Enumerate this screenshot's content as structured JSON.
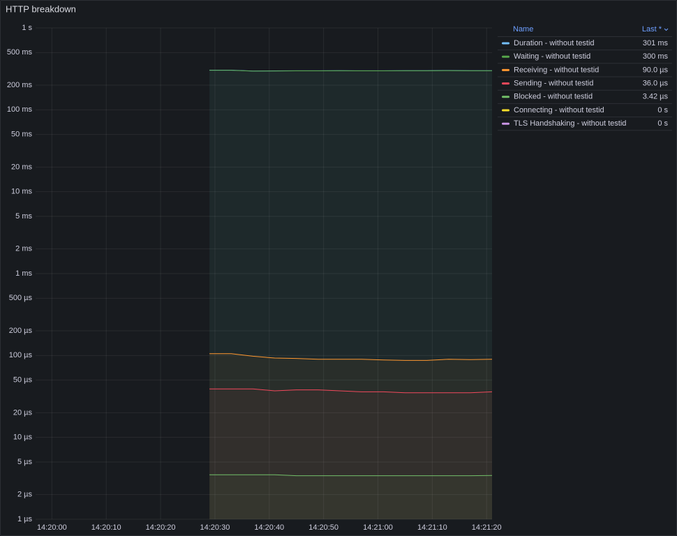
{
  "chart_data": {
    "type": "line",
    "title": "HTTP breakdown",
    "log_scale": true,
    "grid": true,
    "legend_position": "right",
    "legend_columns": [
      "Name",
      "Last *"
    ],
    "x": [
      "14:20:29",
      "14:20:33",
      "14:20:37",
      "14:20:41",
      "14:20:45",
      "14:20:49",
      "14:20:53",
      "14:20:57",
      "14:21:01",
      "14:21:05",
      "14:21:09",
      "14:21:13",
      "14:21:17",
      "14:21:21"
    ],
    "xlim": [
      "14:19:57",
      "14:21:21"
    ],
    "xticks": [
      "14:20:00",
      "14:20:10",
      "14:20:20",
      "14:20:30",
      "14:20:40",
      "14:20:50",
      "14:21:00",
      "14:21:10",
      "14:21:20"
    ],
    "ylim": [
      1e-06,
      1
    ],
    "yticks": [
      {
        "value": 1,
        "label": "1 s"
      },
      {
        "value": 0.5,
        "label": "500 ms"
      },
      {
        "value": 0.2,
        "label": "200 ms"
      },
      {
        "value": 0.1,
        "label": "100 ms"
      },
      {
        "value": 0.05,
        "label": "50 ms"
      },
      {
        "value": 0.02,
        "label": "20 ms"
      },
      {
        "value": 0.01,
        "label": "10 ms"
      },
      {
        "value": 0.005,
        "label": "5 ms"
      },
      {
        "value": 0.002,
        "label": "2 ms"
      },
      {
        "value": 0.001,
        "label": "1 ms"
      },
      {
        "value": 0.0005,
        "label": "500 µs"
      },
      {
        "value": 0.0002,
        "label": "200 µs"
      },
      {
        "value": 0.0001,
        "label": "100 µs"
      },
      {
        "value": 5e-05,
        "label": "50 µs"
      },
      {
        "value": 2e-05,
        "label": "20 µs"
      },
      {
        "value": 1e-05,
        "label": "10 µs"
      },
      {
        "value": 5e-06,
        "label": "5 µs"
      },
      {
        "value": 2e-06,
        "label": "2 µs"
      },
      {
        "value": 1e-06,
        "label": "1 µs"
      }
    ],
    "series": [
      {
        "name": "Duration - without testid",
        "color": "#73bfff",
        "last_value": 0.301,
        "last_label": "301 ms",
        "values": [
          0.305,
          0.305,
          0.298,
          0.299,
          0.3,
          0.3,
          0.301,
          0.3,
          0.3,
          0.301,
          0.301,
          0.302,
          0.301,
          0.301
        ]
      },
      {
        "name": "Waiting - without testid",
        "color": "#56a64b",
        "last_value": 0.3,
        "last_label": "300 ms",
        "values": [
          0.304,
          0.304,
          0.297,
          0.298,
          0.299,
          0.299,
          0.3,
          0.299,
          0.299,
          0.3,
          0.3,
          0.301,
          0.3,
          0.3
        ]
      },
      {
        "name": "Receiving - without testid",
        "color": "#ff9830",
        "last_value": 9e-05,
        "last_label": "90.0 µs",
        "values": [
          0.000105,
          0.000105,
          9.8e-05,
          9.3e-05,
          9.2e-05,
          9e-05,
          9e-05,
          9e-05,
          8.8e-05,
          8.7e-05,
          8.7e-05,
          9e-05,
          8.9e-05,
          9e-05
        ]
      },
      {
        "name": "Sending - without testid",
        "color": "#f2495c",
        "last_value": 3.6e-05,
        "last_label": "36.0 µs",
        "values": [
          3.9e-05,
          3.9e-05,
          3.9e-05,
          3.7e-05,
          3.8e-05,
          3.8e-05,
          3.7e-05,
          3.6e-05,
          3.6e-05,
          3.5e-05,
          3.5e-05,
          3.5e-05,
          3.5e-05,
          3.6e-05
        ]
      },
      {
        "name": "Blocked - without testid",
        "color": "#73bf69",
        "last_value": 3.42e-06,
        "last_label": "3.42 µs",
        "values": [
          3.5e-06,
          3.5e-06,
          3.5e-06,
          3.5e-06,
          3.4e-06,
          3.4e-06,
          3.4e-06,
          3.4e-06,
          3.4e-06,
          3.4e-06,
          3.4e-06,
          3.4e-06,
          3.4e-06,
          3.42e-06
        ]
      },
      {
        "name": "Connecting - without testid",
        "color": "#fade2a",
        "last_value": 0,
        "last_label": "0 s",
        "values": [
          null,
          null,
          null,
          null,
          null,
          null,
          null,
          null,
          null,
          null,
          null,
          null,
          null,
          null
        ]
      },
      {
        "name": "TLS Handshaking - without testid",
        "color": "#ca95e5",
        "last_value": 0,
        "last_label": "0 s",
        "values": [
          null,
          null,
          null,
          null,
          null,
          null,
          null,
          null,
          null,
          null,
          null,
          null,
          null,
          null
        ]
      }
    ]
  }
}
